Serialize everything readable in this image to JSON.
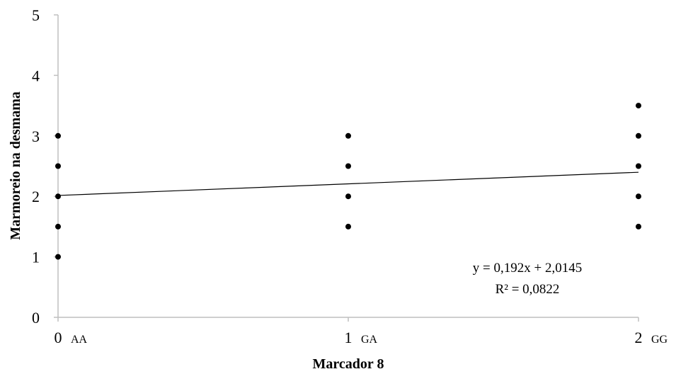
{
  "chart_data": {
    "type": "scatter",
    "xlabel": "Marcador 8",
    "ylabel": "Marmoreio na desmama",
    "xlim": [
      0,
      2
    ],
    "ylim": [
      0,
      5
    ],
    "x_ticks": [
      {
        "value": 0,
        "label": "0",
        "sub": "AA"
      },
      {
        "value": 1,
        "label": "1",
        "sub": "GA"
      },
      {
        "value": 2,
        "label": "2",
        "sub": "GG"
      }
    ],
    "y_ticks": [
      0,
      1,
      2,
      3,
      4,
      5
    ],
    "points": [
      {
        "x": 0,
        "y": 1
      },
      {
        "x": 0,
        "y": 1.5
      },
      {
        "x": 0,
        "y": 2
      },
      {
        "x": 0,
        "y": 2.5
      },
      {
        "x": 0,
        "y": 3
      },
      {
        "x": 1,
        "y": 1.5
      },
      {
        "x": 1,
        "y": 2
      },
      {
        "x": 1,
        "y": 2.5
      },
      {
        "x": 1,
        "y": 3
      },
      {
        "x": 2,
        "y": 1.5
      },
      {
        "x": 2,
        "y": 2
      },
      {
        "x": 2,
        "y": 2.5
      },
      {
        "x": 2,
        "y": 3
      },
      {
        "x": 2,
        "y": 3.5
      }
    ],
    "trendline": {
      "slope": 0.192,
      "intercept": 2.0145
    },
    "equation": "y = 0,192x + 2,0145",
    "r_squared": "R² = 0,0822",
    "grid": false,
    "colors": {
      "points": "#000000",
      "axis": "#bfbfbf",
      "trendline": "#000000"
    }
  }
}
